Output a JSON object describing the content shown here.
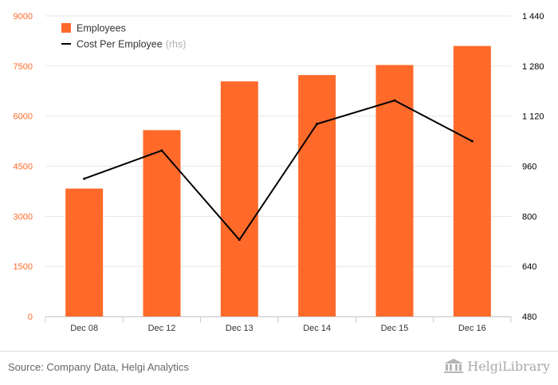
{
  "chart_data": {
    "type": "bar",
    "categories": [
      "Dec 08",
      "Dec 12",
      "Dec 13",
      "Dec 14",
      "Dec 15",
      "Dec 16"
    ],
    "series": [
      {
        "name": "Employees",
        "kind": "bar",
        "axis": "left",
        "values": [
          3830,
          5580,
          7040,
          7230,
          7530,
          8100
        ]
      },
      {
        "name": "Cost Per Employee",
        "name_suffix": "(rhs)",
        "kind": "line",
        "axis": "right",
        "values": [
          920,
          1010,
          725,
          1095,
          1170,
          1040
        ]
      }
    ],
    "ylim_left": [
      0,
      9000
    ],
    "yticks_left": [
      "0",
      "1500",
      "3000",
      "4500",
      "6000",
      "7500",
      "9000"
    ],
    "ylim_right": [
      480,
      1440
    ],
    "yticks_right": [
      "480",
      "640",
      "800",
      "960",
      "1 120",
      "1 280",
      "1 440"
    ],
    "legend_position": "top-left",
    "grid": true,
    "colors": {
      "bar": "#ff6a2b",
      "line": "#000000",
      "left_tick": "#ff6a2b",
      "right_tick": "#000000",
      "grid": "#e6e6e6"
    }
  },
  "footer": {
    "source": "Source: Company Data, Helgi Analytics",
    "brand": "HelgiLibrary",
    "brand_icon": "library-building-icon"
  }
}
